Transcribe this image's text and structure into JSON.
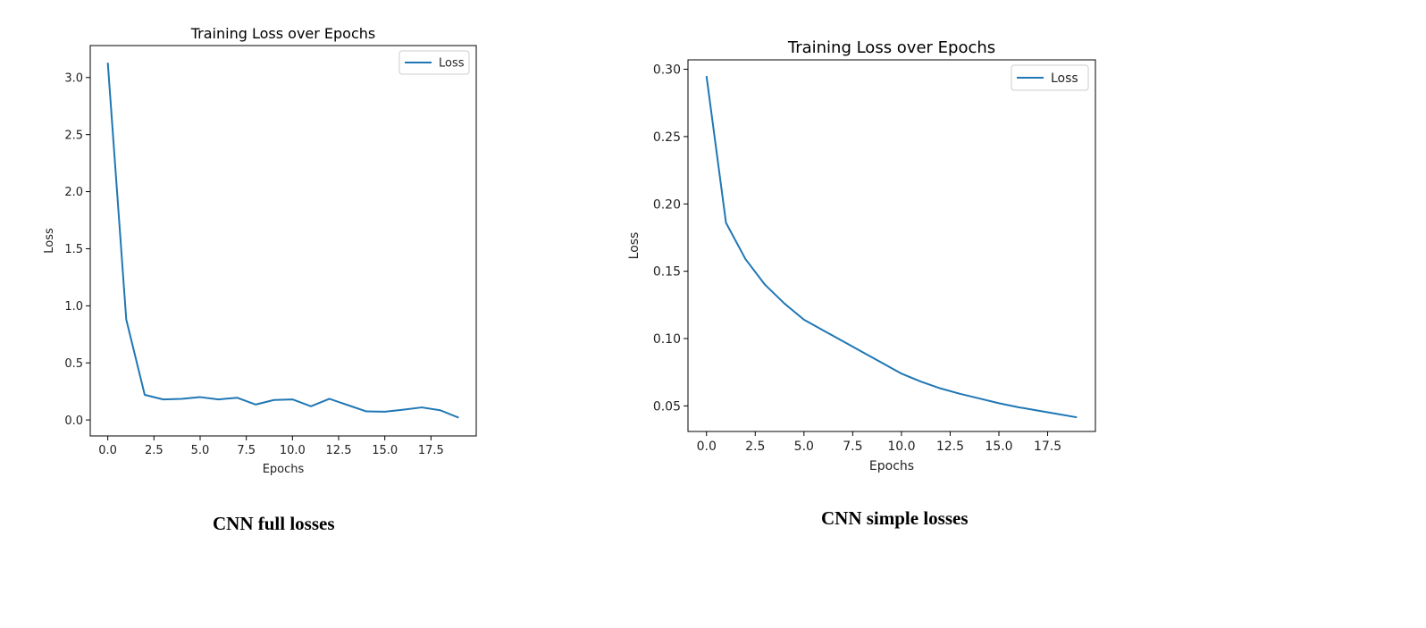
{
  "charts": [
    {
      "caption": "CNN full losses",
      "chart_data": {
        "type": "line",
        "title": "Training Loss over Epochs",
        "xlabel": "Epochs",
        "ylabel": "Loss",
        "xlim": [
          -0.95,
          19.95
        ],
        "ylim": [
          -0.14,
          3.28
        ],
        "xticks": [
          0.0,
          2.5,
          5.0,
          7.5,
          10.0,
          12.5,
          15.0,
          17.5
        ],
        "xtick_labels": [
          "0.0",
          "2.5",
          "5.0",
          "7.5",
          "10.0",
          "12.5",
          "15.0",
          "17.5"
        ],
        "yticks": [
          0.0,
          0.5,
          1.0,
          1.5,
          2.0,
          2.5,
          3.0
        ],
        "ytick_labels": [
          "0.0",
          "0.5",
          "1.0",
          "1.5",
          "2.0",
          "2.5",
          "3.0"
        ],
        "grid": false,
        "legend_position": "top-right",
        "series": [
          {
            "name": "Loss",
            "color": "#1f77b4",
            "x": [
              0,
              1,
              2,
              3,
              4,
              5,
              6,
              7,
              8,
              9,
              10,
              11,
              12,
              13,
              14,
              15,
              16,
              17,
              18,
              19
            ],
            "values": [
              3.13,
              0.88,
              0.22,
              0.18,
              0.185,
              0.2,
              0.18,
              0.195,
              0.135,
              0.175,
              0.18,
              0.12,
              0.185,
              0.13,
              0.075,
              0.072,
              0.09,
              0.11,
              0.085,
              0.02
            ]
          }
        ]
      }
    },
    {
      "caption": "CNN simple losses",
      "chart_data": {
        "type": "line",
        "title": "Training Loss over Epochs",
        "xlabel": "Epochs",
        "ylabel": "Loss",
        "xlim": [
          -0.95,
          19.95
        ],
        "ylim": [
          0.031,
          0.307
        ],
        "xticks": [
          0.0,
          2.5,
          5.0,
          7.5,
          10.0,
          12.5,
          15.0,
          17.5
        ],
        "xtick_labels": [
          "0.0",
          "2.5",
          "5.0",
          "7.5",
          "10.0",
          "12.5",
          "15.0",
          "17.5"
        ],
        "yticks": [
          0.05,
          0.1,
          0.15,
          0.2,
          0.25,
          0.3
        ],
        "ytick_labels": [
          "0.05",
          "0.10",
          "0.15",
          "0.20",
          "0.25",
          "0.30"
        ],
        "grid": false,
        "legend_position": "top-right",
        "series": [
          {
            "name": "Loss",
            "color": "#1f77b4",
            "x": [
              0,
              1,
              2,
              3,
              4,
              5,
              6,
              7,
              8,
              9,
              10,
              11,
              12,
              13,
              14,
              15,
              16,
              17,
              18,
              19
            ],
            "values": [
              0.295,
              0.186,
              0.159,
              0.14,
              0.126,
              0.114,
              0.106,
              0.098,
              0.09,
              0.082,
              0.074,
              0.068,
              0.063,
              0.059,
              0.0555,
              0.052,
              0.049,
              0.0465,
              0.044,
              0.0415
            ]
          }
        ]
      }
    }
  ]
}
